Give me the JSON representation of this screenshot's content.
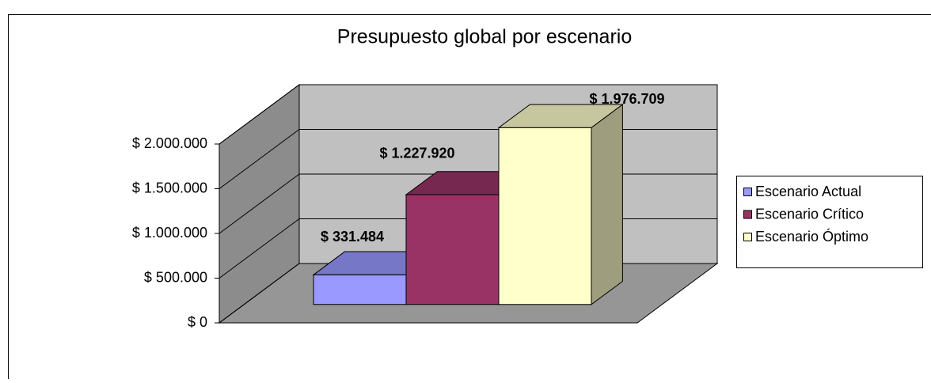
{
  "chart_data": {
    "type": "bar3d",
    "title": "Presupuesto global por escenario",
    "categories": [
      null
    ],
    "series": [
      {
        "name": "Escenario Actual",
        "color": "#9999ff",
        "values": [
          331484
        ],
        "value_labels": [
          "$ 331.484"
        ]
      },
      {
        "name": "Escenario Crítico",
        "color": "#993366",
        "values": [
          1227920
        ],
        "value_labels": [
          "$ 1.227.920"
        ]
      },
      {
        "name": "Escenario Óptimo",
        "color": "#ffffcc",
        "values": [
          1976709
        ],
        "value_labels": [
          "$ 1.976.709"
        ]
      }
    ],
    "ylim": [
      0,
      2000000
    ],
    "yticks": [
      {
        "value": 0,
        "label": "$ 0"
      },
      {
        "value": 500000,
        "label": "$ 500.000"
      },
      {
        "value": 1000000,
        "label": "$ 1.000.000"
      },
      {
        "value": 1500000,
        "label": "$ 1.500.000"
      },
      {
        "value": 2000000,
        "label": "$ 2.000.000"
      }
    ],
    "grid": true,
    "legend": "right"
  }
}
